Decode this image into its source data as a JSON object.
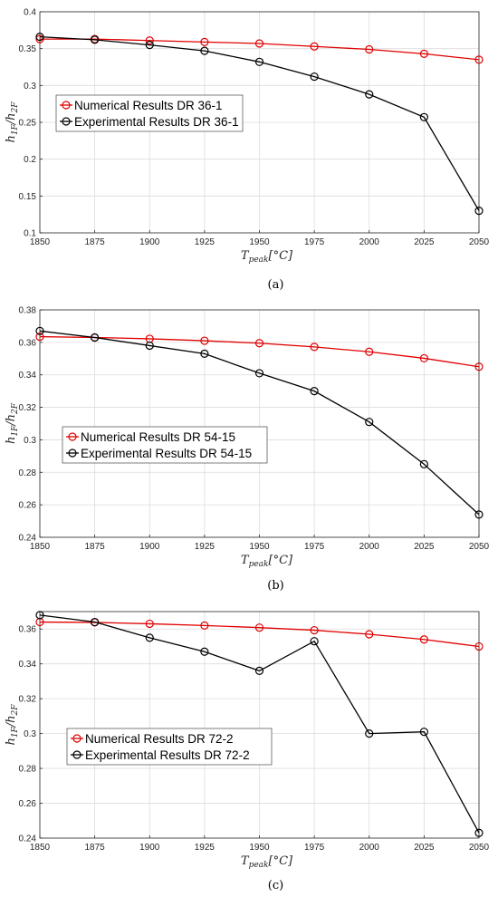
{
  "chart_data": [
    {
      "type": "line",
      "caption": "(a)",
      "x": [
        1850,
        1875,
        1900,
        1925,
        1950,
        1975,
        2000,
        2025,
        2050
      ],
      "xlim": [
        1850,
        2050
      ],
      "ylim": [
        0.1,
        0.4
      ],
      "xticks": [
        "1850",
        "1875",
        "1900",
        "1925",
        "1950",
        "1975",
        "2000",
        "2025",
        "2050"
      ],
      "yticks": [
        "0.1",
        "0.15",
        "0.2",
        "0.25",
        "0.3",
        "0.35",
        "0.4"
      ],
      "ytick_values": [
        0.1,
        0.15,
        0.2,
        0.25,
        0.3,
        0.35,
        0.4
      ],
      "xlabel": "T_peak[°C]",
      "ylabel": "h_1F / h_2F",
      "legend_position": "center-left",
      "series": [
        {
          "name": "Numerical Results DR 36-1",
          "color": "#e00000",
          "values": [
            0.363,
            0.363,
            0.361,
            0.359,
            0.357,
            0.353,
            0.349,
            0.343,
            0.335
          ]
        },
        {
          "name": "Experimental Results DR 36-1",
          "color": "#000000",
          "values": [
            0.366,
            0.362,
            0.355,
            0.347,
            0.332,
            0.312,
            0.288,
            0.257,
            0.13
          ]
        }
      ]
    },
    {
      "type": "line",
      "caption": "(b)",
      "x": [
        1850,
        1875,
        1900,
        1925,
        1950,
        1975,
        2000,
        2025,
        2050
      ],
      "xlim": [
        1850,
        2050
      ],
      "ylim": [
        0.24,
        0.38
      ],
      "xticks": [
        "1850",
        "1875",
        "1900",
        "1925",
        "1950",
        "1975",
        "2000",
        "2025",
        "2050"
      ],
      "yticks": [
        "0.24",
        "0.26",
        "0.28",
        "0.3",
        "0.32",
        "0.34",
        "0.36",
        "0.38"
      ],
      "ytick_values": [
        0.24,
        0.26,
        0.28,
        0.3,
        0.32,
        0.34,
        0.36,
        0.38
      ],
      "xlabel": "T_peak[°C]",
      "ylabel": "h_1F / h_2F",
      "legend_position": "lower-left",
      "series": [
        {
          "name": "Numerical Results DR 54-15",
          "color": "#e00000",
          "values": [
            0.3635,
            0.363,
            0.3622,
            0.361,
            0.3595,
            0.3572,
            0.3542,
            0.3502,
            0.345
          ]
        },
        {
          "name": "Experimental Results DR 54-15",
          "color": "#000000",
          "values": [
            0.367,
            0.363,
            0.358,
            0.353,
            0.341,
            0.33,
            0.311,
            0.285,
            0.254
          ]
        }
      ]
    },
    {
      "type": "line",
      "caption": "(c)",
      "x": [
        1850,
        1875,
        1900,
        1925,
        1950,
        1975,
        2000,
        2025,
        2050
      ],
      "xlim": [
        1850,
        2050
      ],
      "ylim": [
        0.24,
        0.37
      ],
      "xticks": [
        "1850",
        "1875",
        "1900",
        "1925",
        "1950",
        "1975",
        "2000",
        "2025",
        "2050"
      ],
      "yticks": [
        "0.24",
        "0.26",
        "0.28",
        "0.3",
        "0.32",
        "0.34",
        "0.36"
      ],
      "ytick_values": [
        0.24,
        0.26,
        0.28,
        0.3,
        0.32,
        0.34,
        0.36
      ],
      "xlabel": "T_peak[°C]",
      "ylabel": "h_1F / h_2F",
      "legend_position": "lower-left",
      "series": [
        {
          "name": "Numerical Results DR 72-2",
          "color": "#e00000",
          "values": [
            0.364,
            0.3638,
            0.363,
            0.362,
            0.3608,
            0.3593,
            0.357,
            0.354,
            0.35
          ]
        },
        {
          "name": "Experimental Results DR 72-2",
          "color": "#000000",
          "values": [
            0.368,
            0.364,
            0.355,
            0.347,
            0.336,
            0.353,
            0.3,
            0.301,
            0.243
          ]
        }
      ]
    }
  ]
}
